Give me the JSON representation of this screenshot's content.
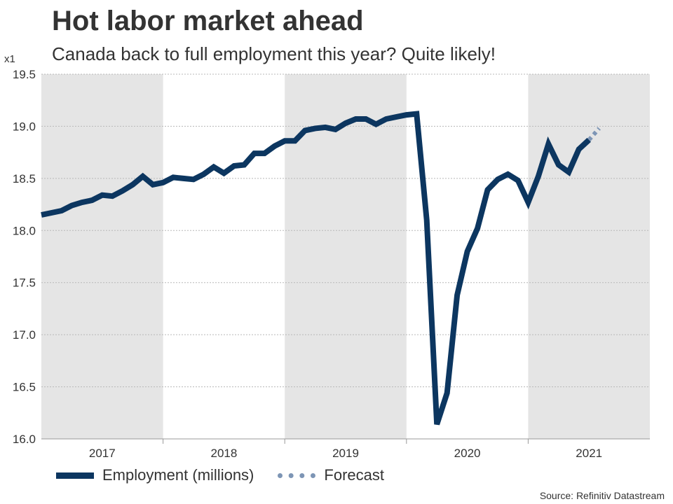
{
  "header": {
    "title": "Hot labor market ahead",
    "subtitle": "Canada back to full employment this year? Quite likely!",
    "scale_note": "x1"
  },
  "legend": {
    "employment_label": "Employment (millions)",
    "forecast_label": "Forecast"
  },
  "footer": {
    "source": "Source: Refinitiv Datastream"
  },
  "colors": {
    "series": "#0c3660",
    "forecast": "#7d95b5",
    "band": "#e5e5e5",
    "grid": "#b8b8b8",
    "axis": "#999999",
    "text": "#333333"
  },
  "chart_data": {
    "type": "line",
    "title": "Hot labor market ahead",
    "subtitle": "Canada back to full employment this year? Quite likely!",
    "xlabel": "",
    "ylabel": "",
    "ylim": [
      16.0,
      19.5
    ],
    "yticks": [
      16.0,
      16.5,
      17.0,
      17.5,
      18.0,
      18.5,
      19.0,
      19.5
    ],
    "ytick_labels": [
      "16.0",
      "16.5",
      "17.0",
      "17.5",
      "18.0",
      "18.5",
      "19.0",
      "19.5"
    ],
    "years": [
      "2017",
      "2018",
      "2019",
      "2020",
      "2021"
    ],
    "shaded_years": [
      "2017",
      "2019",
      "2021"
    ],
    "grid": true,
    "legend_position": "bottom-left",
    "series": [
      {
        "name": "Employment (millions)",
        "style": "solid",
        "x": [
          "2017-01",
          "2017-02",
          "2017-03",
          "2017-04",
          "2017-05",
          "2017-06",
          "2017-07",
          "2017-08",
          "2017-09",
          "2017-10",
          "2017-11",
          "2017-12",
          "2018-01",
          "2018-02",
          "2018-03",
          "2018-04",
          "2018-05",
          "2018-06",
          "2018-07",
          "2018-08",
          "2018-09",
          "2018-10",
          "2018-11",
          "2018-12",
          "2019-01",
          "2019-02",
          "2019-03",
          "2019-04",
          "2019-05",
          "2019-06",
          "2019-07",
          "2019-08",
          "2019-09",
          "2019-10",
          "2019-11",
          "2019-12",
          "2020-01",
          "2020-02",
          "2020-03",
          "2020-04",
          "2020-05",
          "2020-06",
          "2020-07",
          "2020-08",
          "2020-09",
          "2020-10",
          "2020-11",
          "2020-12",
          "2021-01",
          "2021-02",
          "2021-03",
          "2021-04",
          "2021-05",
          "2021-06",
          "2021-07"
        ],
        "values": [
          18.15,
          18.17,
          18.19,
          18.24,
          18.27,
          18.29,
          18.34,
          18.33,
          18.38,
          18.44,
          18.52,
          18.44,
          18.46,
          18.51,
          18.5,
          18.49,
          18.54,
          18.61,
          18.55,
          18.62,
          18.63,
          18.74,
          18.74,
          18.81,
          18.86,
          18.86,
          18.96,
          18.98,
          18.99,
          18.97,
          19.03,
          19.07,
          19.07,
          19.02,
          19.07,
          19.09,
          19.11,
          19.12,
          18.1,
          16.14,
          16.44,
          17.38,
          17.8,
          18.02,
          18.39,
          18.49,
          18.54,
          18.48,
          18.27,
          18.52,
          18.83,
          18.63,
          18.56,
          18.78,
          18.87
        ]
      },
      {
        "name": "Forecast",
        "style": "dotted",
        "x": [
          "2021-07",
          "2021-08"
        ],
        "values": [
          18.87,
          18.98
        ]
      }
    ]
  }
}
